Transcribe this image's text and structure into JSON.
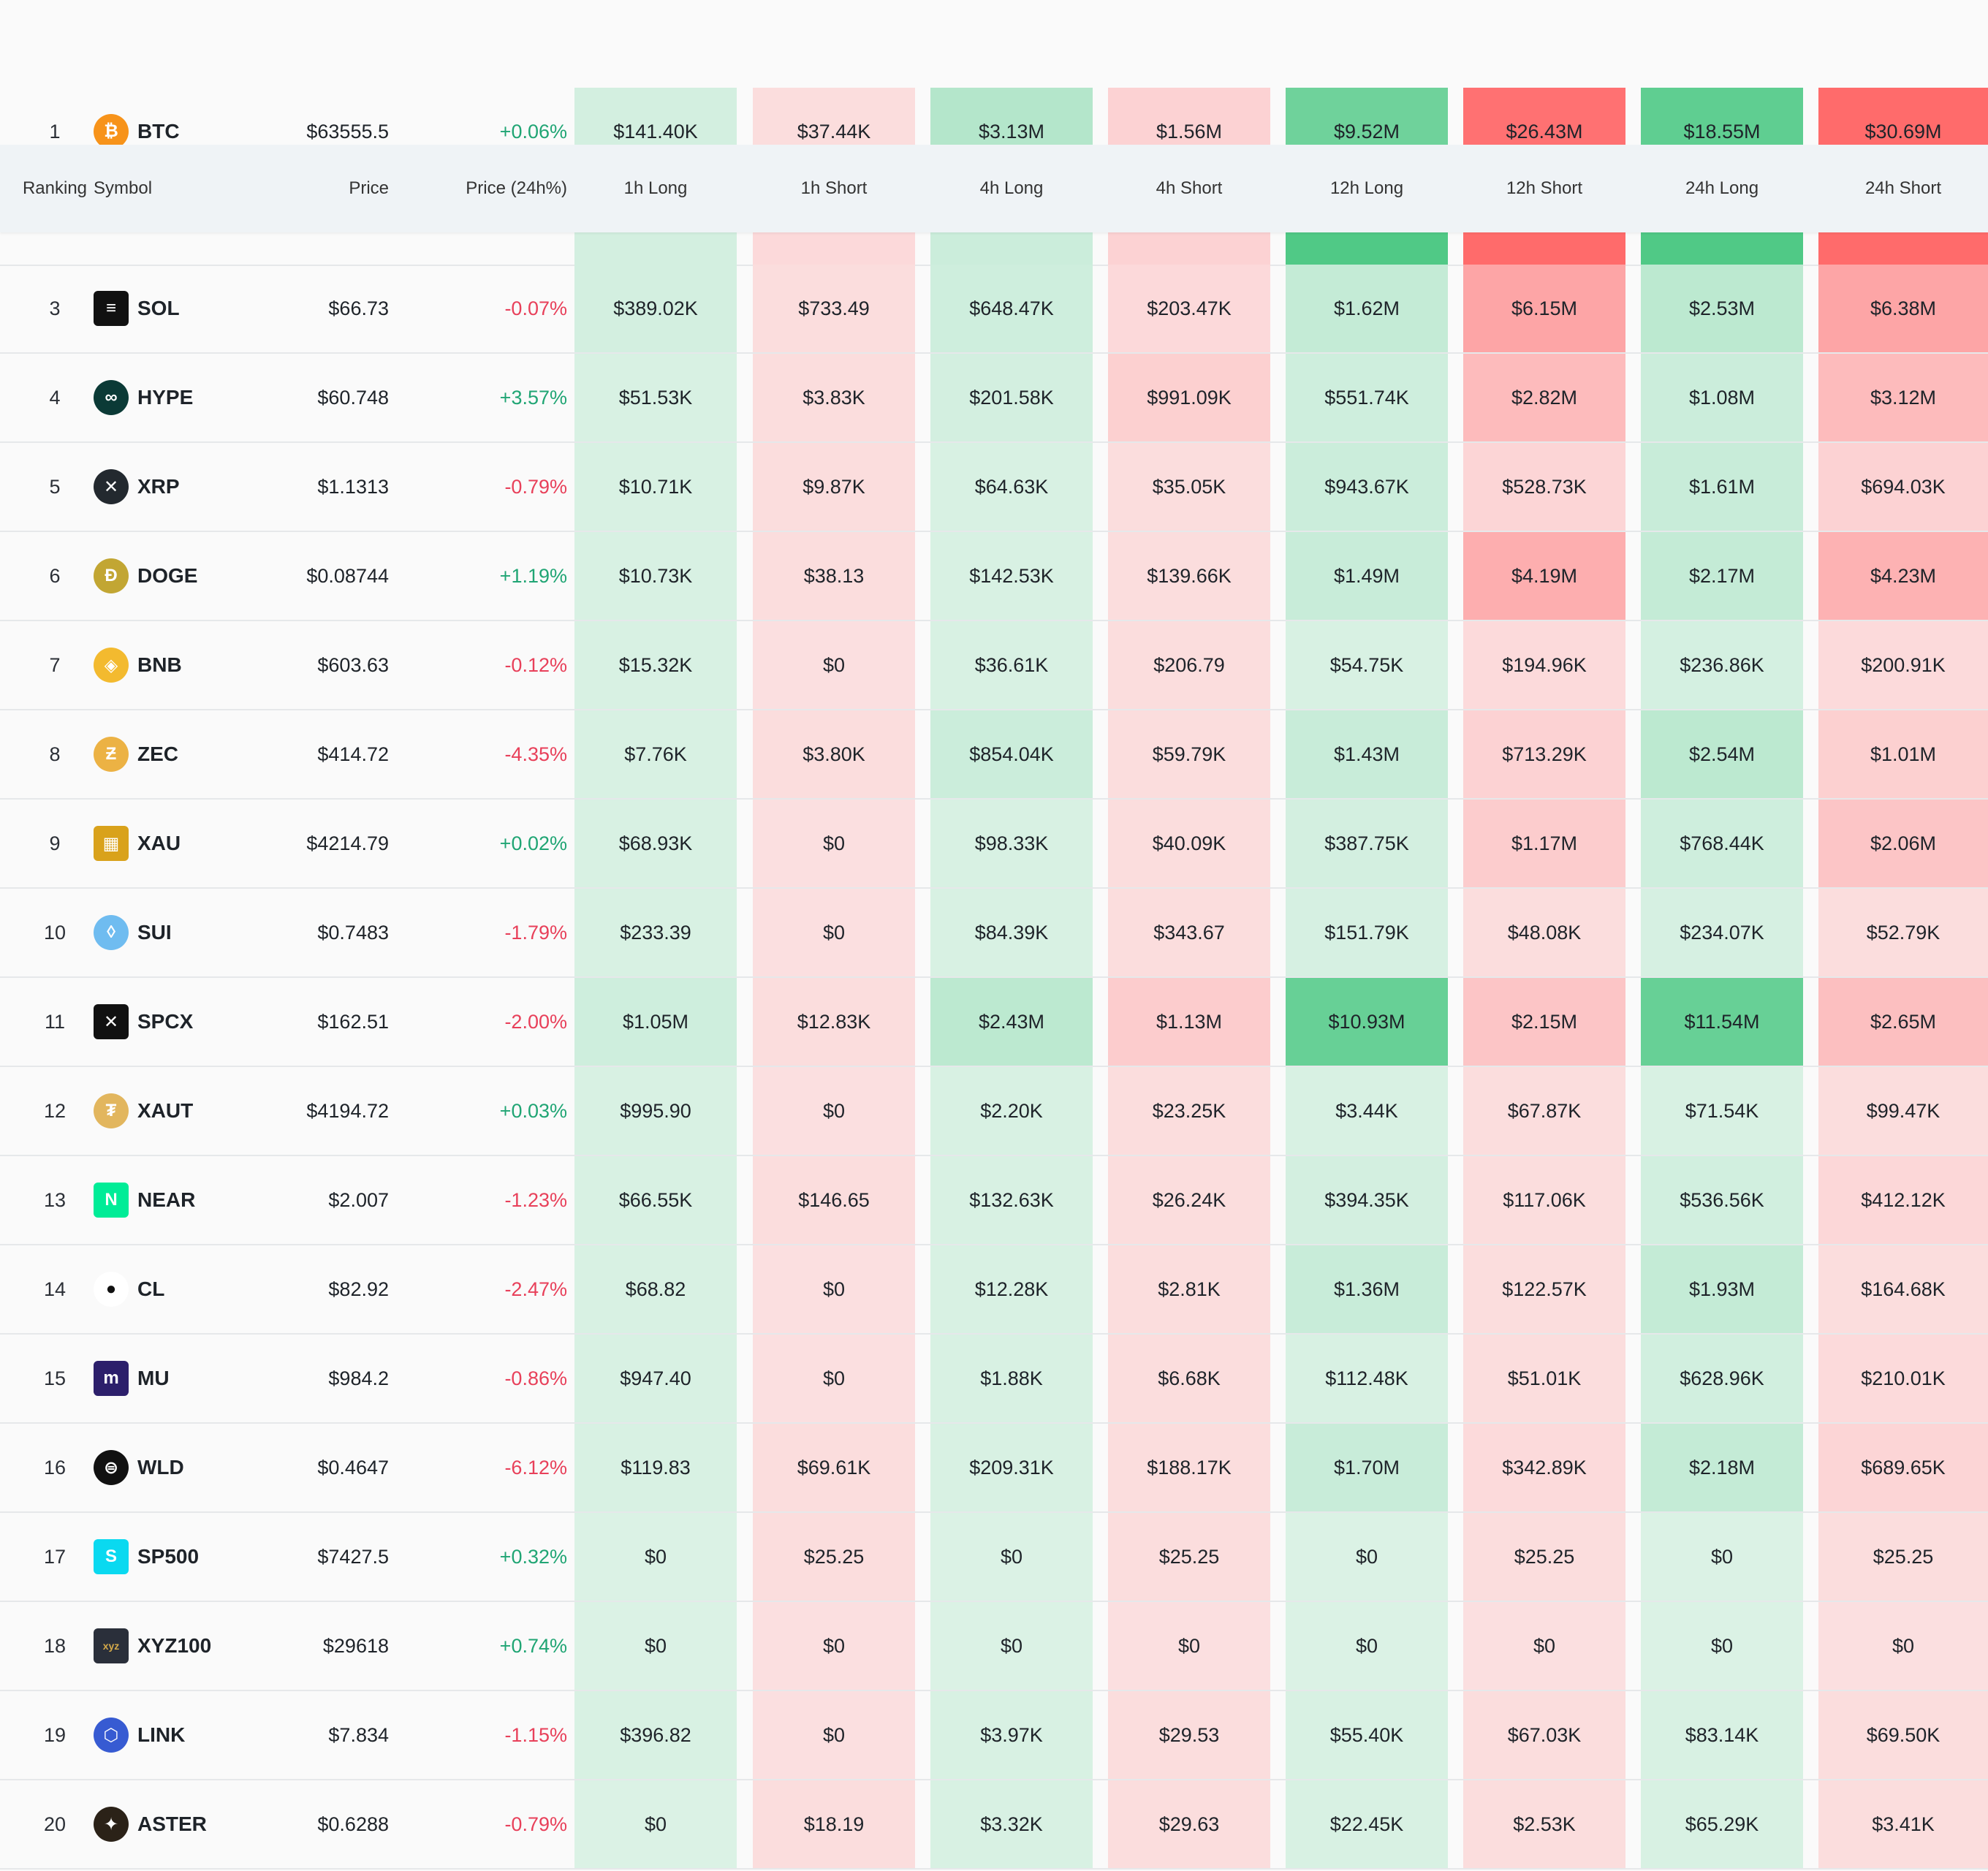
{
  "header": {
    "ranking": "Ranking",
    "symbol": "Symbol",
    "price": "Price",
    "price_change": "Price (24h%)",
    "h1_long": "1h Long",
    "h1_short": "1h Short",
    "h4_long": "4h Long",
    "h4_short": "4h Short",
    "h12_long": "12h Long",
    "h12_short": "12h Short",
    "h24_long": "24h Long",
    "h24_short": "24h Short"
  },
  "colors": {
    "long": "#50c986",
    "short": "#ff6b6b",
    "positive": "#20a574",
    "negative": "#e8405a"
  },
  "rows": [
    {
      "rank": "1",
      "symbol": "BTC",
      "icon": "bitcoin-icon",
      "logo_color": "#f7931a",
      "logo_text": "₿",
      "price": "$63555.5",
      "change": "+0.06%",
      "dir": "pos",
      "values": [
        "$141.40K",
        "$37.44K",
        "$3.13M",
        "$1.56M",
        "$9.52M",
        "$26.43M",
        "$18.55M",
        "$30.69M"
      ],
      "intensity": [
        0.15,
        0.12,
        0.35,
        0.2,
        0.8,
        0.95,
        0.9,
        1.0
      ]
    },
    {
      "rank": "",
      "symbol": "",
      "icon": "",
      "logo_color": "#cccccc",
      "logo_text": "",
      "price": "",
      "change": "",
      "dir": "pos",
      "values": [
        "",
        "",
        "",
        "",
        "",
        "",
        "",
        ""
      ],
      "intensity": [
        0.15,
        0.15,
        0.2,
        0.2,
        1.0,
        1.0,
        1.0,
        1.0
      ]
    },
    {
      "rank": "3",
      "symbol": "SOL",
      "icon": "solana-icon",
      "logo_color": "#111111",
      "logo_text": "≡",
      "price": "$66.73",
      "change": "-0.07%",
      "dir": "neg",
      "values": [
        "$389.02K",
        "$733.49",
        "$648.47K",
        "$203.47K",
        "$1.62M",
        "$6.15M",
        "$2.53M",
        "$6.38M"
      ],
      "intensity": [
        0.15,
        0.12,
        0.18,
        0.15,
        0.25,
        0.55,
        0.3,
        0.55
      ]
    },
    {
      "rank": "4",
      "symbol": "HYPE",
      "icon": "hype-icon",
      "logo_color": "#0b3a36",
      "logo_text": "∞",
      "price": "$60.748",
      "change": "+3.57%",
      "dir": "pos",
      "values": [
        "$51.53K",
        "$3.83K",
        "$201.58K",
        "$991.09K",
        "$551.74K",
        "$2.82M",
        "$1.08M",
        "$3.12M"
      ],
      "intensity": [
        0.12,
        0.12,
        0.15,
        0.22,
        0.18,
        0.38,
        0.2,
        0.38
      ]
    },
    {
      "rank": "5",
      "symbol": "XRP",
      "icon": "xrp-icon",
      "logo_color": "#23292f",
      "logo_text": "✕",
      "price": "$1.1313",
      "change": "-0.79%",
      "dir": "neg",
      "values": [
        "$10.71K",
        "$9.87K",
        "$64.63K",
        "$35.05K",
        "$943.67K",
        "$528.73K",
        "$1.61M",
        "$694.03K"
      ],
      "intensity": [
        0.12,
        0.12,
        0.12,
        0.12,
        0.2,
        0.18,
        0.22,
        0.2
      ]
    },
    {
      "rank": "6",
      "symbol": "DOGE",
      "icon": "doge-icon",
      "logo_color": "#c2a633",
      "logo_text": "Ð",
      "price": "$0.08744",
      "change": "+1.19%",
      "dir": "pos",
      "values": [
        "$10.73K",
        "$38.13",
        "$142.53K",
        "$139.66K",
        "$1.49M",
        "$4.19M",
        "$2.17M",
        "$4.23M"
      ],
      "intensity": [
        0.12,
        0.12,
        0.12,
        0.12,
        0.22,
        0.48,
        0.25,
        0.45
      ]
    },
    {
      "rank": "7",
      "symbol": "BNB",
      "icon": "bnb-icon",
      "logo_color": "#f3ba2f",
      "logo_text": "◈",
      "price": "$603.63",
      "change": "-0.12%",
      "dir": "neg",
      "values": [
        "$15.32K",
        "$0",
        "$36.61K",
        "$206.79",
        "$54.75K",
        "$194.96K",
        "$236.86K",
        "$200.91K"
      ],
      "intensity": [
        0.12,
        0.1,
        0.12,
        0.12,
        0.12,
        0.14,
        0.14,
        0.14
      ]
    },
    {
      "rank": "8",
      "symbol": "ZEC",
      "icon": "zcash-icon",
      "logo_color": "#ecb244",
      "logo_text": "Ƶ",
      "price": "$414.72",
      "change": "-4.35%",
      "dir": "neg",
      "values": [
        "$7.76K",
        "$3.80K",
        "$854.04K",
        "$59.79K",
        "$1.43M",
        "$713.29K",
        "$2.54M",
        "$1.01M"
      ],
      "intensity": [
        0.12,
        0.12,
        0.2,
        0.12,
        0.22,
        0.2,
        0.3,
        0.22
      ]
    },
    {
      "rank": "9",
      "symbol": "XAU",
      "icon": "gold-bars-icon",
      "logo_color": "#d9a21b",
      "logo_text": "▦",
      "price": "$4214.79",
      "change": "+0.02%",
      "dir": "pos",
      "values": [
        "$68.93K",
        "$0",
        "$98.33K",
        "$40.09K",
        "$387.75K",
        "$1.17M",
        "$768.44K",
        "$2.06M"
      ],
      "intensity": [
        0.12,
        0.1,
        0.12,
        0.12,
        0.15,
        0.25,
        0.18,
        0.3
      ]
    },
    {
      "rank": "10",
      "symbol": "SUI",
      "icon": "sui-drop-icon",
      "logo_color": "#6fbcf0",
      "logo_text": "◊",
      "price": "$0.7483",
      "change": "-1.79%",
      "dir": "neg",
      "values": [
        "$233.39",
        "$0",
        "$84.39K",
        "$343.67",
        "$151.79K",
        "$48.08K",
        "$234.07K",
        "$52.79K"
      ],
      "intensity": [
        0.12,
        0.1,
        0.12,
        0.12,
        0.13,
        0.12,
        0.13,
        0.12
      ]
    },
    {
      "rank": "11",
      "symbol": "SPCX",
      "icon": "spacex-icon",
      "logo_color": "#111111",
      "logo_text": "✕",
      "price": "$162.51",
      "change": "-2.00%",
      "dir": "neg",
      "values": [
        "$1.05M",
        "$12.83K",
        "$2.43M",
        "$1.13M",
        "$10.93M",
        "$2.15M",
        "$11.54M",
        "$2.65M"
      ],
      "intensity": [
        0.18,
        0.12,
        0.3,
        0.25,
        0.85,
        0.3,
        0.85,
        0.35
      ]
    },
    {
      "rank": "12",
      "symbol": "XAUT",
      "icon": "tether-gold-icon",
      "logo_color": "#e2b65e",
      "logo_text": "₮",
      "price": "$4194.72",
      "change": "+0.03%",
      "dir": "pos",
      "values": [
        "$995.90",
        "$0",
        "$2.20K",
        "$23.25K",
        "$3.44K",
        "$67.87K",
        "$71.54K",
        "$99.47K"
      ],
      "intensity": [
        0.12,
        0.1,
        0.12,
        0.12,
        0.12,
        0.12,
        0.12,
        0.12
      ]
    },
    {
      "rank": "13",
      "symbol": "NEAR",
      "icon": "near-icon",
      "logo_color": "#00ec97",
      "logo_text": "N",
      "price": "$2.007",
      "change": "-1.23%",
      "dir": "neg",
      "values": [
        "$66.55K",
        "$146.65",
        "$132.63K",
        "$26.24K",
        "$394.35K",
        "$117.06K",
        "$536.56K",
        "$412.12K"
      ],
      "intensity": [
        0.12,
        0.12,
        0.12,
        0.12,
        0.15,
        0.12,
        0.16,
        0.16
      ]
    },
    {
      "rank": "14",
      "symbol": "CL",
      "icon": "oil-drop-icon",
      "logo_color": "#ffffff",
      "logo_text": "●",
      "price": "$82.92",
      "change": "-2.47%",
      "dir": "neg",
      "values": [
        "$68.82",
        "$0",
        "$12.28K",
        "$2.81K",
        "$1.36M",
        "$122.57K",
        "$1.93M",
        "$164.68K"
      ],
      "intensity": [
        0.12,
        0.1,
        0.12,
        0.12,
        0.22,
        0.12,
        0.25,
        0.12
      ]
    },
    {
      "rank": "15",
      "symbol": "MU",
      "icon": "micron-icon",
      "logo_color": "#2c1f6b",
      "logo_text": "m",
      "price": "$984.2",
      "change": "-0.86%",
      "dir": "neg",
      "values": [
        "$947.40",
        "$0",
        "$1.88K",
        "$6.68K",
        "$112.48K",
        "$51.01K",
        "$628.96K",
        "$210.01K"
      ],
      "intensity": [
        0.12,
        0.1,
        0.12,
        0.12,
        0.12,
        0.12,
        0.16,
        0.14
      ]
    },
    {
      "rank": "16",
      "symbol": "WLD",
      "icon": "worldcoin-icon",
      "logo_color": "#111111",
      "logo_text": "⊜",
      "price": "$0.4647",
      "change": "-6.12%",
      "dir": "neg",
      "values": [
        "$119.83",
        "$69.61K",
        "$209.31K",
        "$188.17K",
        "$1.70M",
        "$342.89K",
        "$2.18M",
        "$689.65K"
      ],
      "intensity": [
        0.12,
        0.12,
        0.12,
        0.12,
        0.22,
        0.14,
        0.25,
        0.18
      ]
    },
    {
      "rank": "17",
      "symbol": "SP500",
      "icon": "sp500-icon",
      "logo_color": "#0ad9f0",
      "logo_text": "S",
      "price": "$7427.5",
      "change": "+0.32%",
      "dir": "pos",
      "values": [
        "$0",
        "$25.25",
        "$0",
        "$25.25",
        "$0",
        "$25.25",
        "$0",
        "$25.25"
      ],
      "intensity": [
        0.1,
        0.12,
        0.1,
        0.12,
        0.1,
        0.12,
        0.1,
        0.12
      ]
    },
    {
      "rank": "18",
      "symbol": "XYZ100",
      "icon": "xyz-icon",
      "logo_color": "#2a2f3a",
      "logo_text": "xyz",
      "price": "$29618",
      "change": "+0.74%",
      "dir": "pos",
      "values": [
        "$0",
        "$0",
        "$0",
        "$0",
        "$0",
        "$0",
        "$0",
        "$0"
      ],
      "intensity": [
        0.1,
        0.1,
        0.1,
        0.1,
        0.1,
        0.1,
        0.1,
        0.1
      ]
    },
    {
      "rank": "19",
      "symbol": "LINK",
      "icon": "chainlink-icon",
      "logo_color": "#375bd2",
      "logo_text": "⬡",
      "price": "$7.834",
      "change": "-1.15%",
      "dir": "neg",
      "values": [
        "$396.82",
        "$0",
        "$3.97K",
        "$29.53",
        "$55.40K",
        "$67.03K",
        "$83.14K",
        "$69.50K"
      ],
      "intensity": [
        0.12,
        0.1,
        0.12,
        0.12,
        0.12,
        0.12,
        0.12,
        0.12
      ]
    },
    {
      "rank": "20",
      "symbol": "ASTER",
      "icon": "aster-icon",
      "logo_color": "#2b2218",
      "logo_text": "✦",
      "price": "$0.6288",
      "change": "-0.79%",
      "dir": "neg",
      "values": [
        "$0",
        "$18.19",
        "$3.32K",
        "$29.63",
        "$22.45K",
        "$2.53K",
        "$65.29K",
        "$3.41K"
      ],
      "intensity": [
        0.1,
        0.12,
        0.12,
        0.12,
        0.12,
        0.12,
        0.12,
        0.12
      ]
    }
  ]
}
